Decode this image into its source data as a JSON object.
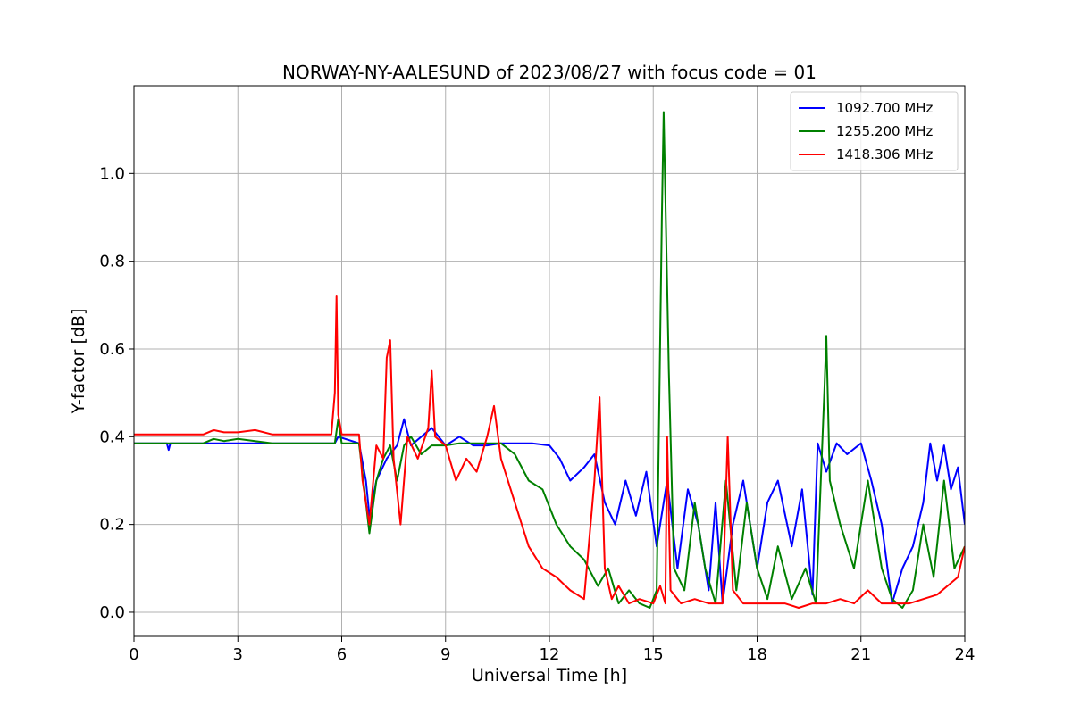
{
  "chart_data": {
    "type": "line",
    "title": "NORWAY-NY-AALESUND of 2023/08/27 with focus code = 01",
    "xlabel": "Universal Time [h]",
    "ylabel": "Y-factor [dB]",
    "xlim": [
      0,
      24
    ],
    "ylim": [
      -0.055,
      1.2
    ],
    "xticks": [
      0,
      3,
      6,
      9,
      12,
      15,
      18,
      21,
      24
    ],
    "yticks": [
      0.0,
      0.2,
      0.4,
      0.6,
      0.8,
      1.0
    ],
    "ytick_labels": [
      "0.0",
      "0.2",
      "0.4",
      "0.6",
      "0.8",
      "1.0"
    ],
    "grid": true,
    "legend_position": "top-right",
    "series": [
      {
        "name": "1092.700 MHz",
        "color": "#0000ff",
        "x": [
          0,
          0.95,
          1.0,
          1.05,
          2.0,
          4.0,
          5.8,
          5.9,
          6.5,
          6.7,
          6.8,
          7.0,
          7.3,
          7.6,
          7.8,
          8.0,
          8.3,
          8.6,
          9.0,
          9.4,
          9.8,
          10.2,
          10.6,
          11.0,
          11.5,
          12.0,
          12.3,
          12.6,
          13.0,
          13.3,
          13.6,
          13.9,
          14.2,
          14.5,
          14.8,
          15.1,
          15.4,
          15.7,
          16.0,
          16.3,
          16.6,
          16.8,
          17.0,
          17.3,
          17.6,
          18.0,
          18.3,
          18.6,
          19.0,
          19.3,
          19.6,
          19.75,
          20.0,
          20.3,
          20.6,
          21.0,
          21.3,
          21.6,
          21.9,
          22.2,
          22.5,
          22.8,
          23.0,
          23.2,
          23.4,
          23.6,
          23.8,
          24.0
        ],
        "y": [
          0.385,
          0.385,
          0.37,
          0.385,
          0.385,
          0.385,
          0.385,
          0.4,
          0.385,
          0.3,
          0.22,
          0.3,
          0.35,
          0.38,
          0.44,
          0.38,
          0.4,
          0.42,
          0.38,
          0.4,
          0.38,
          0.38,
          0.385,
          0.385,
          0.385,
          0.38,
          0.35,
          0.3,
          0.33,
          0.36,
          0.25,
          0.2,
          0.3,
          0.22,
          0.32,
          0.15,
          0.3,
          0.1,
          0.28,
          0.2,
          0.05,
          0.25,
          0.02,
          0.2,
          0.3,
          0.1,
          0.25,
          0.3,
          0.15,
          0.28,
          0.04,
          0.385,
          0.32,
          0.385,
          0.36,
          0.385,
          0.3,
          0.2,
          0.02,
          0.1,
          0.15,
          0.25,
          0.385,
          0.3,
          0.38,
          0.28,
          0.33,
          0.2
        ]
      },
      {
        "name": "1255.200 MHz",
        "color": "#008000",
        "x": [
          0,
          2.0,
          2.3,
          2.6,
          3.0,
          3.5,
          4.0,
          5.8,
          5.9,
          6.0,
          6.5,
          6.7,
          6.8,
          7.0,
          7.2,
          7.4,
          7.6,
          7.8,
          8.0,
          8.3,
          8.6,
          9.0,
          9.4,
          9.8,
          10.2,
          10.6,
          11.0,
          11.4,
          11.8,
          12.2,
          12.6,
          13.0,
          13.4,
          13.7,
          14.0,
          14.3,
          14.6,
          14.9,
          15.1,
          15.25,
          15.3,
          15.35,
          15.45,
          15.6,
          15.9,
          16.2,
          16.5,
          16.8,
          17.1,
          17.4,
          17.7,
          18.0,
          18.3,
          18.6,
          19.0,
          19.4,
          19.7,
          19.85,
          19.95,
          20.0,
          20.1,
          20.4,
          20.8,
          21.2,
          21.6,
          21.9,
          22.2,
          22.5,
          22.8,
          23.1,
          23.4,
          23.7,
          24.0
        ],
        "y": [
          0.385,
          0.385,
          0.395,
          0.39,
          0.395,
          0.39,
          0.385,
          0.385,
          0.44,
          0.385,
          0.385,
          0.25,
          0.18,
          0.3,
          0.35,
          0.38,
          0.3,
          0.38,
          0.4,
          0.36,
          0.38,
          0.38,
          0.385,
          0.385,
          0.385,
          0.385,
          0.36,
          0.3,
          0.28,
          0.2,
          0.15,
          0.12,
          0.06,
          0.1,
          0.02,
          0.05,
          0.02,
          0.01,
          0.05,
          0.9,
          1.14,
          0.95,
          0.55,
          0.1,
          0.05,
          0.25,
          0.1,
          0.02,
          0.3,
          0.05,
          0.25,
          0.1,
          0.03,
          0.15,
          0.03,
          0.1,
          0.02,
          0.32,
          0.52,
          0.63,
          0.3,
          0.2,
          0.1,
          0.3,
          0.1,
          0.03,
          0.01,
          0.05,
          0.2,
          0.08,
          0.3,
          0.1,
          0.15
        ]
      },
      {
        "name": "1418.306 MHz",
        "color": "#ff0000",
        "x": [
          0,
          2.0,
          2.3,
          2.6,
          3.0,
          3.5,
          4.0,
          5.7,
          5.8,
          5.85,
          5.9,
          6.0,
          6.5,
          6.6,
          6.8,
          7.0,
          7.2,
          7.3,
          7.4,
          7.5,
          7.7,
          7.9,
          8.2,
          8.5,
          8.6,
          8.7,
          9.0,
          9.3,
          9.6,
          9.9,
          10.2,
          10.4,
          10.6,
          11.0,
          11.4,
          11.8,
          12.2,
          12.6,
          13.0,
          13.3,
          13.45,
          13.6,
          13.8,
          14.0,
          14.3,
          14.6,
          15.0,
          15.2,
          15.35,
          15.4,
          15.5,
          15.8,
          16.2,
          16.6,
          17.0,
          17.15,
          17.3,
          17.6,
          18.0,
          18.4,
          18.8,
          19.2,
          19.6,
          20.0,
          20.4,
          20.8,
          21.2,
          21.6,
          22.0,
          22.4,
          22.8,
          23.2,
          23.5,
          23.8,
          24.0
        ],
        "y": [
          0.405,
          0.405,
          0.415,
          0.41,
          0.41,
          0.415,
          0.405,
          0.405,
          0.5,
          0.72,
          0.45,
          0.405,
          0.405,
          0.3,
          0.2,
          0.38,
          0.35,
          0.58,
          0.62,
          0.35,
          0.2,
          0.4,
          0.35,
          0.42,
          0.55,
          0.4,
          0.38,
          0.3,
          0.35,
          0.32,
          0.4,
          0.47,
          0.35,
          0.25,
          0.15,
          0.1,
          0.08,
          0.05,
          0.03,
          0.3,
          0.49,
          0.1,
          0.03,
          0.06,
          0.02,
          0.03,
          0.02,
          0.06,
          0.02,
          0.4,
          0.05,
          0.02,
          0.03,
          0.02,
          0.02,
          0.4,
          0.05,
          0.02,
          0.02,
          0.02,
          0.02,
          0.01,
          0.02,
          0.02,
          0.03,
          0.02,
          0.05,
          0.02,
          0.02,
          0.02,
          0.03,
          0.04,
          0.06,
          0.08,
          0.15
        ]
      }
    ]
  }
}
